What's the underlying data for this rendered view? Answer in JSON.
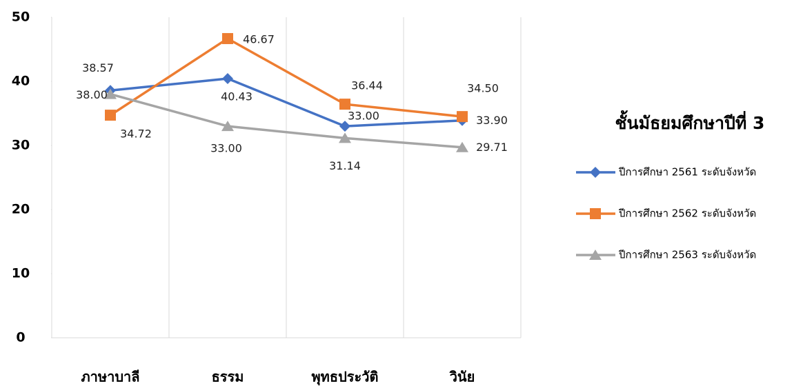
{
  "chart_data": {
    "type": "line",
    "title": "ชั้นมัธยมศึกษาปีที่ 3",
    "categories": [
      "ภาษาบาลี",
      "ธรรม",
      "พุทธประวัติ",
      "วินัย"
    ],
    "series": [
      {
        "name": "ปีการศึกษา 2561 ระดับจังหวัด",
        "color": "#4472c4",
        "marker": "diamond",
        "values": [
          38.57,
          40.43,
          33.0,
          33.9
        ],
        "value_labels": [
          "38.57",
          "40.43",
          "33.00",
          "33.90"
        ]
      },
      {
        "name": "ปีการศึกษา 2562 ระดับจังหวัด",
        "color": "#ed7d31",
        "marker": "square",
        "values": [
          34.72,
          46.67,
          36.44,
          34.5
        ],
        "value_labels": [
          "34.72",
          "46.67",
          "36.44",
          "34.50"
        ]
      },
      {
        "name": "ปีการศึกษา 2563 ระดับจังหวัด",
        "color": "#a5a5a5",
        "marker": "triangle",
        "values": [
          38.0,
          33.0,
          31.14,
          29.71
        ],
        "value_labels": [
          "38.00",
          "33.00",
          "31.14",
          "29.71"
        ]
      }
    ],
    "ylim": [
      0,
      50
    ],
    "yticks": [
      0,
      10,
      20,
      30,
      40,
      50
    ],
    "legend": "right"
  }
}
